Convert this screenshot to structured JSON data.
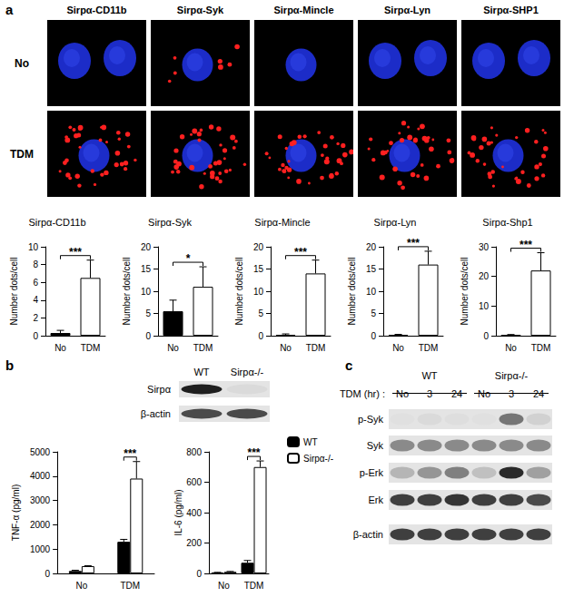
{
  "chart_data": [
    {
      "type": "bar",
      "title": "Sirpα-CD11b",
      "y_label": "Number dots/cell",
      "categories": [
        "No",
        "TDM"
      ],
      "values": [
        0.3,
        6.5
      ],
      "errors": [
        0.3,
        2.0
      ],
      "colors": [
        "#000000",
        "#ffffff"
      ],
      "ylim": [
        0,
        10
      ],
      "yticks": [
        0,
        2,
        4,
        6,
        8,
        10
      ],
      "grid": false,
      "annotations": [
        {
          "text": "***",
          "between": [
            "No",
            "TDM"
          ]
        }
      ]
    },
    {
      "type": "bar",
      "title": "Sirpα-Syk",
      "y_label": "Number dots/cell",
      "categories": [
        "No",
        "TDM"
      ],
      "values": [
        5.5,
        11
      ],
      "errors": [
        2.5,
        4.5
      ],
      "colors": [
        "#000000",
        "#ffffff"
      ],
      "ylim": [
        0,
        20
      ],
      "yticks": [
        0,
        5,
        10,
        15,
        20
      ],
      "grid": false,
      "annotations": [
        {
          "text": "*",
          "between": [
            "No",
            "TDM"
          ]
        }
      ]
    },
    {
      "type": "bar",
      "title": "Sirpα-Mincle",
      "y_label": "Number dots/cell",
      "categories": [
        "No",
        "TDM"
      ],
      "values": [
        0.2,
        14
      ],
      "errors": [
        0.2,
        3
      ],
      "colors": [
        "#000000",
        "#ffffff"
      ],
      "ylim": [
        0,
        20
      ],
      "yticks": [
        0,
        5,
        10,
        15,
        20
      ],
      "grid": false,
      "annotations": [
        {
          "text": "***",
          "between": [
            "No",
            "TDM"
          ]
        }
      ]
    },
    {
      "type": "bar",
      "title": "Sirpα-Lyn",
      "y_label": "Number dots/cell",
      "categories": [
        "No",
        "TDM"
      ],
      "values": [
        0.2,
        16
      ],
      "errors": [
        0.1,
        3
      ],
      "colors": [
        "#000000",
        "#ffffff"
      ],
      "ylim": [
        0,
        20
      ],
      "yticks": [
        0,
        5,
        10,
        15,
        20
      ],
      "grid": false,
      "annotations": [
        {
          "text": "***",
          "between": [
            "No",
            "TDM"
          ]
        }
      ]
    },
    {
      "type": "bar",
      "title": "Sirpα-Shp1",
      "y_label": "Number dots/cell",
      "categories": [
        "No",
        "TDM"
      ],
      "values": [
        0.2,
        22
      ],
      "errors": [
        0.2,
        6
      ],
      "colors": [
        "#000000",
        "#ffffff"
      ],
      "ylim": [
        0,
        30
      ],
      "yticks": [
        0,
        10,
        20,
        30
      ],
      "grid": false,
      "annotations": [
        {
          "text": "***",
          "between": [
            "No",
            "TDM"
          ]
        }
      ]
    },
    {
      "type": "bar",
      "y_label": "TNF-α (pg/ml)",
      "categories": [
        "No",
        "TDM"
      ],
      "series": [
        {
          "name": "WT",
          "color": "#000000",
          "values": [
            100,
            1300
          ],
          "errors": [
            30,
            100
          ]
        },
        {
          "name": "Sirpα-/-",
          "color": "#ffffff",
          "values": [
            300,
            3900
          ],
          "errors": [
            20,
            700
          ]
        }
      ],
      "ylim": [
        0,
        5000
      ],
      "yticks": [
        0,
        1000,
        2000,
        3000,
        4000,
        5000
      ],
      "grid": false,
      "annotations": [
        {
          "text": "***",
          "category": "TDM"
        }
      ]
    },
    {
      "type": "bar",
      "y_label": "IL-6 (pg/ml)",
      "categories": [
        "No",
        "TDM"
      ],
      "series": [
        {
          "name": "WT",
          "color": "#000000",
          "values": [
            5,
            70
          ],
          "errors": [
            2,
            15
          ]
        },
        {
          "name": "Sirpα-/-",
          "color": "#ffffff",
          "values": [
            10,
            700
          ],
          "errors": [
            3,
            40
          ]
        }
      ],
      "ylim": [
        0,
        800
      ],
      "yticks": [
        0,
        200,
        400,
        600,
        800
      ],
      "grid": false,
      "legend": "top-right",
      "annotations": [
        {
          "text": "***",
          "category": "TDM"
        }
      ]
    }
  ],
  "figure": {
    "panel_letters": [
      "a",
      "b",
      "c"
    ],
    "panel_a_images": {
      "rows": [
        "No",
        "TDM"
      ],
      "columns": [
        "Sirpα-CD11b",
        "Sirpα-Syk",
        "Sirpα-Mincle",
        "Sirpα-Lyn",
        "Sirpα-SHP1"
      ]
    },
    "blot_b": {
      "columns": [
        "WT",
        "Sirpα-/-"
      ],
      "rows": [
        "Sirpα",
        "β-actin"
      ]
    },
    "blot_c": {
      "groups": [
        "WT",
        "Sirpα-/-"
      ],
      "condition_label": "TDM (hr) :",
      "lanes": [
        "No",
        "3",
        "24",
        "No",
        "3",
        "24"
      ],
      "rows": [
        "p-Syk",
        "Syk",
        "p-Erk",
        "Erk",
        "β-actin"
      ]
    }
  }
}
